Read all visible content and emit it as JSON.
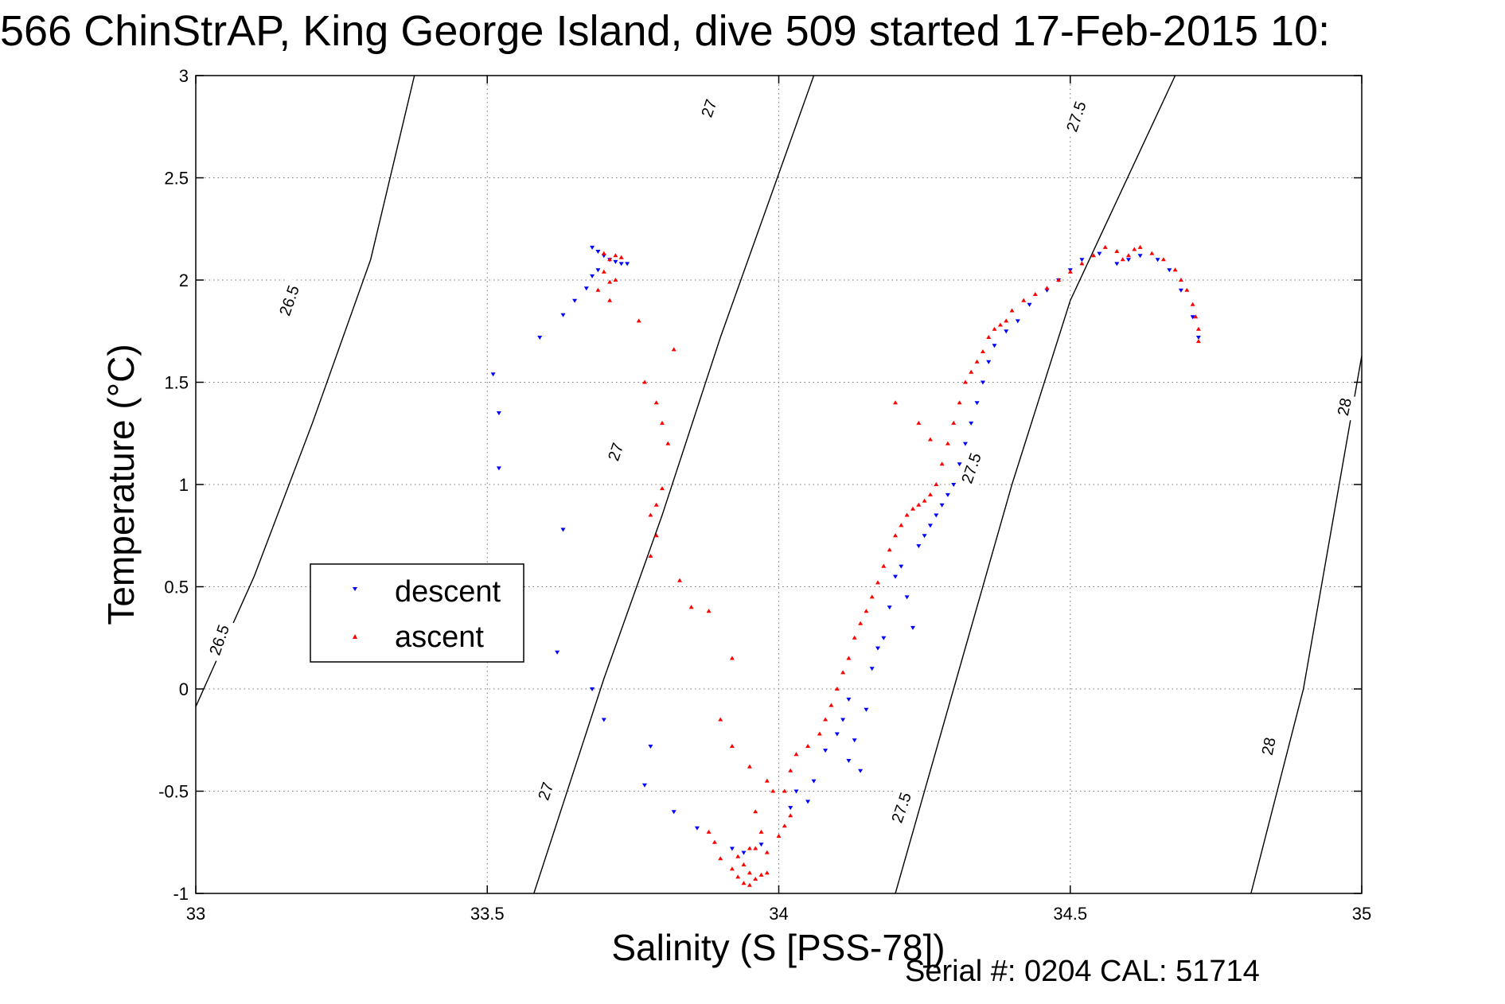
{
  "page": {
    "title": "566 ChinStrAP, King George Island, dive 509 started 17-Feb-2015 10:",
    "footer": "Serial #: 0204  CAL: 51714"
  },
  "chart_data": {
    "type": "scatter",
    "title": "566 ChinStrAP, King George Island, dive 509 started 17-Feb-2015 10:",
    "xlabel": "Salinity (S [PSS-78])",
    "ylabel": "Temperature (°C)",
    "xlim": [
      33,
      35
    ],
    "ylim": [
      -1,
      3
    ],
    "xticks": [
      33,
      33.5,
      34,
      34.5,
      35
    ],
    "xtick_labels": [
      "33",
      "33.5",
      "34",
      "34.5",
      "35"
    ],
    "yticks": [
      -1,
      -0.5,
      0,
      0.5,
      1,
      1.5,
      2,
      2.5,
      3
    ],
    "ytick_labels": [
      "-1",
      "-0.5",
      "0",
      "0.5",
      "1",
      "1.5",
      "2",
      "2.5",
      "3"
    ],
    "grid": true,
    "legend_position": "left-middle",
    "colors": {
      "descent": "#0000ff",
      "ascent": "#ff0000",
      "isopycnal": "#000000"
    },
    "isopycnals": [
      {
        "label": "26.5",
        "points": [
          [
            32.99,
            -0.15
          ],
          [
            33.1,
            0.55
          ],
          [
            33.2,
            1.3
          ],
          [
            33.3,
            2.1
          ],
          [
            33.375,
            3.0
          ]
        ],
        "label_points": [
          [
            33.04,
            0.24
          ],
          [
            33.16,
            1.9
          ]
        ]
      },
      {
        "label": "27",
        "points": [
          [
            33.58,
            -1.0
          ],
          [
            33.7,
            0.05
          ],
          [
            33.8,
            0.85
          ],
          [
            33.9,
            1.72
          ],
          [
            34.06,
            3.0
          ]
        ],
        "label_points": [
          [
            33.6,
            -0.5
          ],
          [
            33.72,
            1.16
          ],
          [
            33.88,
            2.84
          ]
        ]
      },
      {
        "label": "27.5",
        "points": [
          [
            34.2,
            -1.0
          ],
          [
            34.3,
            0.0
          ],
          [
            34.4,
            1.0
          ],
          [
            34.5,
            1.9
          ],
          [
            34.68,
            3.0
          ]
        ],
        "label_points": [
          [
            34.21,
            -0.58
          ],
          [
            34.33,
            1.08
          ],
          [
            34.51,
            2.8
          ]
        ]
      },
      {
        "label": "28",
        "points": [
          [
            34.81,
            -1.0
          ],
          [
            34.9,
            0.0
          ],
          [
            35.0,
            1.63
          ]
        ],
        "label_points": [
          [
            34.84,
            -0.28
          ],
          [
            34.97,
            1.38
          ]
        ]
      }
    ],
    "series": [
      {
        "name": "descent",
        "marker": "triangle-down",
        "points": [
          [
            33.68,
            2.16
          ],
          [
            33.69,
            2.14
          ],
          [
            33.7,
            2.12
          ],
          [
            33.71,
            2.1
          ],
          [
            33.72,
            2.09
          ],
          [
            33.73,
            2.08
          ],
          [
            33.74,
            2.08
          ],
          [
            33.69,
            2.05
          ],
          [
            33.68,
            2.02
          ],
          [
            33.67,
            1.96
          ],
          [
            33.65,
            1.9
          ],
          [
            33.63,
            1.83
          ],
          [
            33.59,
            1.72
          ],
          [
            33.51,
            1.54
          ],
          [
            33.52,
            1.35
          ],
          [
            33.52,
            1.08
          ],
          [
            33.63,
            0.78
          ],
          [
            33.62,
            0.18
          ],
          [
            33.68,
            0.0
          ],
          [
            33.7,
            -0.15
          ],
          [
            33.78,
            -0.28
          ],
          [
            33.77,
            -0.47
          ],
          [
            33.82,
            -0.6
          ],
          [
            33.86,
            -0.68
          ],
          [
            33.92,
            -0.78
          ],
          [
            33.94,
            -0.8
          ],
          [
            33.97,
            -0.76
          ],
          [
            34.02,
            -0.58
          ],
          [
            34.03,
            -0.5
          ],
          [
            34.05,
            -0.55
          ],
          [
            34.06,
            -0.45
          ],
          [
            34.08,
            -0.3
          ],
          [
            34.1,
            -0.22
          ],
          [
            34.11,
            -0.15
          ],
          [
            34.12,
            -0.05
          ],
          [
            34.13,
            -0.25
          ],
          [
            34.12,
            -0.35
          ],
          [
            34.14,
            -0.4
          ],
          [
            34.15,
            -0.1
          ],
          [
            34.16,
            0.1
          ],
          [
            34.17,
            0.2
          ],
          [
            34.18,
            0.25
          ],
          [
            34.19,
            0.4
          ],
          [
            34.2,
            0.55
          ],
          [
            34.21,
            0.6
          ],
          [
            34.22,
            0.45
          ],
          [
            34.23,
            0.3
          ],
          [
            34.24,
            0.7
          ],
          [
            34.25,
            0.75
          ],
          [
            34.26,
            0.8
          ],
          [
            34.27,
            0.85
          ],
          [
            34.28,
            0.9
          ],
          [
            34.29,
            0.95
          ],
          [
            34.3,
            1.0
          ],
          [
            34.31,
            1.1
          ],
          [
            34.32,
            1.2
          ],
          [
            34.33,
            1.3
          ],
          [
            34.34,
            1.4
          ],
          [
            34.35,
            1.5
          ],
          [
            34.36,
            1.6
          ],
          [
            34.37,
            1.68
          ],
          [
            34.39,
            1.75
          ],
          [
            34.41,
            1.8
          ],
          [
            34.43,
            1.88
          ],
          [
            34.46,
            1.95
          ],
          [
            34.48,
            2.0
          ],
          [
            34.5,
            2.05
          ],
          [
            34.52,
            2.1
          ],
          [
            34.55,
            2.13
          ],
          [
            34.58,
            2.08
          ],
          [
            34.6,
            2.1
          ],
          [
            34.62,
            2.12
          ],
          [
            34.65,
            2.1
          ],
          [
            34.67,
            2.05
          ],
          [
            34.69,
            1.95
          ],
          [
            34.71,
            1.82
          ],
          [
            34.72,
            1.72
          ]
        ]
      },
      {
        "name": "ascent",
        "marker": "triangle-up",
        "points": [
          [
            33.7,
            2.13
          ],
          [
            33.71,
            2.1
          ],
          [
            33.72,
            2.12
          ],
          [
            33.73,
            2.11
          ],
          [
            33.7,
            2.04
          ],
          [
            33.71,
            1.99
          ],
          [
            33.72,
            2.0
          ],
          [
            33.69,
            1.95
          ],
          [
            33.71,
            1.9
          ],
          [
            33.76,
            1.8
          ],
          [
            33.77,
            1.5
          ],
          [
            33.79,
            1.4
          ],
          [
            33.8,
            1.3
          ],
          [
            33.81,
            1.2
          ],
          [
            33.8,
            0.98
          ],
          [
            33.79,
            0.9
          ],
          [
            33.78,
            0.85
          ],
          [
            33.79,
            0.75
          ],
          [
            33.78,
            0.65
          ],
          [
            33.83,
            0.53
          ],
          [
            33.82,
            1.66
          ],
          [
            33.85,
            0.4
          ],
          [
            33.88,
            0.38
          ],
          [
            33.92,
            0.15
          ],
          [
            33.9,
            -0.15
          ],
          [
            33.92,
            -0.28
          ],
          [
            33.95,
            -0.38
          ],
          [
            33.98,
            -0.45
          ],
          [
            33.99,
            -0.5
          ],
          [
            33.96,
            -0.6
          ],
          [
            33.97,
            -0.7
          ],
          [
            33.95,
            -0.78
          ],
          [
            33.93,
            -0.82
          ],
          [
            33.94,
            -0.86
          ],
          [
            33.95,
            -0.9
          ],
          [
            33.94,
            -0.95
          ],
          [
            33.95,
            -0.96
          ],
          [
            33.96,
            -0.93
          ],
          [
            33.97,
            -0.91
          ],
          [
            33.98,
            -0.9
          ],
          [
            33.93,
            -0.92
          ],
          [
            33.92,
            -0.88
          ],
          [
            33.9,
            -0.83
          ],
          [
            33.89,
            -0.75
          ],
          [
            33.88,
            -0.7
          ],
          [
            33.96,
            -0.78
          ],
          [
            33.98,
            -0.8
          ],
          [
            34.0,
            -0.72
          ],
          [
            34.01,
            -0.67
          ],
          [
            34.02,
            -0.62
          ],
          [
            34.01,
            -0.5
          ],
          [
            34.02,
            -0.4
          ],
          [
            34.03,
            -0.32
          ],
          [
            34.05,
            -0.28
          ],
          [
            34.07,
            -0.22
          ],
          [
            34.08,
            -0.15
          ],
          [
            34.09,
            -0.08
          ],
          [
            34.1,
            0.0
          ],
          [
            34.11,
            0.08
          ],
          [
            34.12,
            0.15
          ],
          [
            34.13,
            0.25
          ],
          [
            34.14,
            0.32
          ],
          [
            34.15,
            0.38
          ],
          [
            34.16,
            0.45
          ],
          [
            34.17,
            0.52
          ],
          [
            34.18,
            0.6
          ],
          [
            34.19,
            0.68
          ],
          [
            34.2,
            0.75
          ],
          [
            34.21,
            0.8
          ],
          [
            34.22,
            0.85
          ],
          [
            34.23,
            0.88
          ],
          [
            34.24,
            0.9
          ],
          [
            34.25,
            0.92
          ],
          [
            34.26,
            0.95
          ],
          [
            34.27,
            1.0
          ],
          [
            34.28,
            1.1
          ],
          [
            34.29,
            1.2
          ],
          [
            34.3,
            1.3
          ],
          [
            34.31,
            1.4
          ],
          [
            34.32,
            1.5
          ],
          [
            34.33,
            1.55
          ],
          [
            34.34,
            1.6
          ],
          [
            34.35,
            1.65
          ],
          [
            34.36,
            1.72
          ],
          [
            34.37,
            1.76
          ],
          [
            34.38,
            1.78
          ],
          [
            34.39,
            1.8
          ],
          [
            34.4,
            1.85
          ],
          [
            34.42,
            1.9
          ],
          [
            34.44,
            1.93
          ],
          [
            34.46,
            1.96
          ],
          [
            34.48,
            2.0
          ],
          [
            34.5,
            2.04
          ],
          [
            34.52,
            2.08
          ],
          [
            34.54,
            2.12
          ],
          [
            34.56,
            2.16
          ],
          [
            34.58,
            2.14
          ],
          [
            34.59,
            2.1
          ],
          [
            34.6,
            2.12
          ],
          [
            34.61,
            2.15
          ],
          [
            34.62,
            2.16
          ],
          [
            34.64,
            2.13
          ],
          [
            34.66,
            2.1
          ],
          [
            34.68,
            2.05
          ],
          [
            34.69,
            2.0
          ],
          [
            34.7,
            1.95
          ],
          [
            34.71,
            1.88
          ],
          [
            34.715,
            1.82
          ],
          [
            34.72,
            1.76
          ],
          [
            34.72,
            1.7
          ],
          [
            34.2,
            1.4
          ],
          [
            34.24,
            1.3
          ],
          [
            34.26,
            1.22
          ]
        ]
      }
    ]
  }
}
